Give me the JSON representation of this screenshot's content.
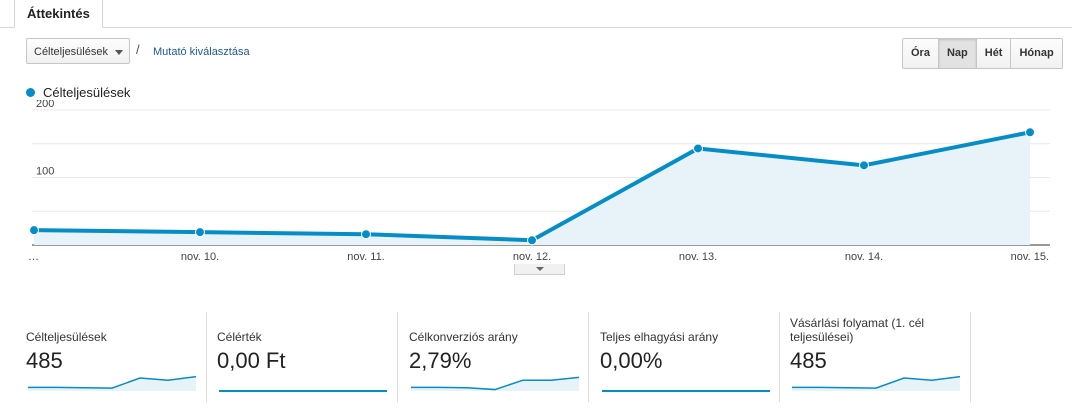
{
  "tab": {
    "label": "Áttekintés"
  },
  "toolbar": {
    "metric_select": "Célteljesülések",
    "slash": "/",
    "secondary_link": "Mutató kiválasztása"
  },
  "period_buttons": [
    {
      "label": "Óra",
      "active": false
    },
    {
      "label": "Nap",
      "active": true
    },
    {
      "label": "Hét",
      "active": false
    },
    {
      "label": "Hónap",
      "active": false
    }
  ],
  "legend": {
    "label": "Célteljesülések",
    "color": "#058dc7"
  },
  "chart_data": {
    "type": "area",
    "x": [
      "…",
      "nov. 10.",
      "nov. 11.",
      "nov. 12.",
      "nov. 13.",
      "nov. 14.",
      "nov. 15."
    ],
    "series": [
      {
        "name": "Célteljesülések",
        "values": [
          22,
          19,
          16,
          7,
          143,
          118,
          167
        ]
      }
    ],
    "yticks": [
      100,
      200
    ],
    "ylim": [
      0,
      200
    ],
    "color": "#058dc7",
    "fill": "#e7f3f9"
  },
  "metrics": [
    {
      "label": "Célteljesülések",
      "value": "485",
      "spark": [
        5,
        5,
        4.5,
        4,
        18,
        15,
        20
      ],
      "spark_max": 25
    },
    {
      "label": "Célérték",
      "value": "0,00 Ft",
      "spark": [
        0,
        0,
        0,
        0,
        0,
        0,
        0
      ],
      "spark_max": 10
    },
    {
      "label": "Célkonverziós arány",
      "value": "2,79%",
      "spark": [
        5,
        5,
        4.5,
        2,
        15,
        15,
        19
      ],
      "spark_max": 25
    },
    {
      "label": "Teljes elhagyási arány",
      "value": "0,00%",
      "spark": [
        0,
        0,
        0,
        0,
        0,
        0,
        0
      ],
      "spark_max": 10
    },
    {
      "label": "Vásárlási folyamat (1. cél teljesülései)",
      "value": "485",
      "spark": [
        5,
        5,
        4.5,
        4,
        18,
        15,
        20
      ],
      "spark_max": 25
    }
  ]
}
